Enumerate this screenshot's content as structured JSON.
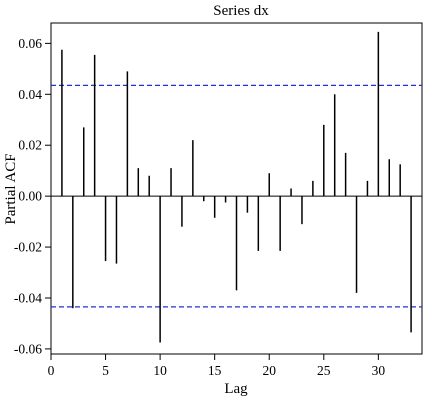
{
  "chart_data": {
    "type": "bar",
    "subtype": "pacf-lollipop",
    "title": "Series dx",
    "xlabel": "Lag",
    "ylabel": "Partial ACF",
    "xlim": [
      0,
      34
    ],
    "ylim": [
      -0.062,
      0.068
    ],
    "x_ticks": [
      0,
      5,
      10,
      15,
      20,
      25,
      30
    ],
    "x_tick_labels": [
      "0",
      "5",
      "10",
      "15",
      "20",
      "25",
      "30"
    ],
    "y_ticks": [
      0.06,
      0.04,
      0.02,
      0.0,
      -0.02,
      -0.04,
      -0.06
    ],
    "y_tick_labels": [
      "0.06",
      "0.04",
      "0.02",
      "0.00",
      "-0.02",
      "-0.04",
      "-0.06"
    ],
    "confidence_band": [
      0.0435,
      -0.0435
    ],
    "band_color": "#2233cc",
    "stem_color": "#000000",
    "grid": false,
    "series": [
      {
        "lags": [
          1,
          2,
          3,
          4,
          5,
          6,
          7,
          8,
          9,
          10,
          11,
          12,
          13,
          14,
          15,
          16,
          17,
          18,
          19,
          20,
          21,
          22,
          23,
          24,
          25,
          26,
          27,
          28,
          29,
          30,
          31,
          32,
          33
        ],
        "values": [
          0.0575,
          -0.044,
          0.027,
          0.0555,
          -0.0255,
          -0.0265,
          0.049,
          0.011,
          0.008,
          -0.0575,
          0.011,
          -0.012,
          0.022,
          -0.002,
          -0.0085,
          -0.0025,
          -0.037,
          -0.0065,
          -0.0215,
          0.009,
          -0.0215,
          0.003,
          -0.011,
          0.006,
          0.028,
          0.04,
          0.017,
          -0.038,
          0.006,
          0.0645,
          0.0145,
          0.0125,
          -0.0535
        ]
      }
    ]
  }
}
